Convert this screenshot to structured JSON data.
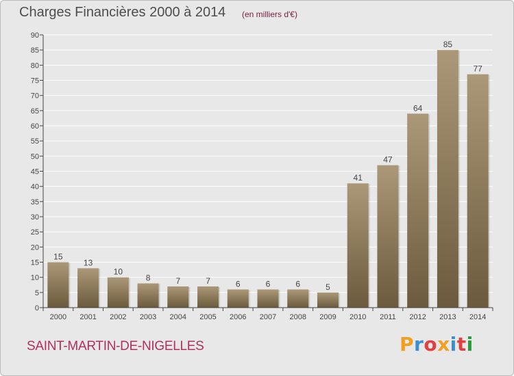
{
  "header": {
    "title": "Charges Financières 2000 à 2014",
    "subtitle": "(en milliers d'€)"
  },
  "footer": {
    "commune": "SAINT-MARTIN-DE-NIGELLES",
    "brand": "Proxiti",
    "brand_letters": [
      "P",
      "r",
      "o",
      "x",
      "i",
      "t",
      "i"
    ],
    "brand_colors": [
      "#f0a020",
      "#3a8fd0",
      "#e04040",
      "#f0a020",
      "#3a8fd0",
      "#e04040",
      "#2a9a3a"
    ]
  },
  "chart_data": {
    "type": "bar",
    "title": "Charges Financières 2000 à 2014",
    "subtitle": "(en milliers d'€)",
    "categories": [
      "2000",
      "2001",
      "2002",
      "2003",
      "2004",
      "2005",
      "2006",
      "2007",
      "2008",
      "2009",
      "2010",
      "2011",
      "2012",
      "2013",
      "2014"
    ],
    "values": [
      15,
      13,
      10,
      8,
      7,
      7,
      6,
      6,
      6,
      5,
      41,
      47,
      64,
      85,
      77
    ],
    "xlabel": "",
    "ylabel": "",
    "ylim": [
      0,
      90
    ],
    "yticks": [
      0,
      5,
      10,
      15,
      20,
      25,
      30,
      35,
      40,
      45,
      50,
      55,
      60,
      65,
      70,
      75,
      80,
      85,
      90
    ],
    "grid": true,
    "bar_color_top": "#ab9878",
    "bar_color_bottom": "#6b5a3d"
  }
}
